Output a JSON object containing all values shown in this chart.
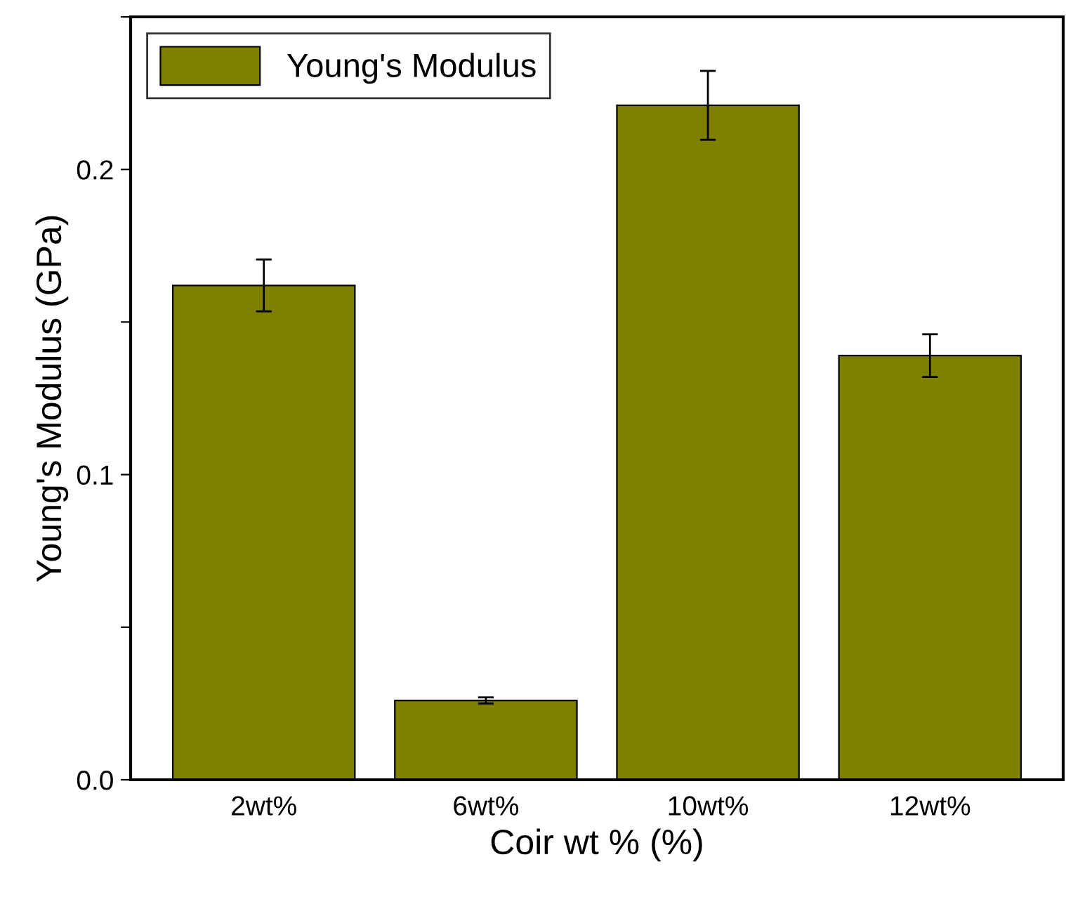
{
  "chart_data": {
    "type": "bar",
    "xlabel": "Coir wt % (%)",
    "ylabel": "Young's Modulus (GPa)",
    "categories": [
      "2wt%",
      "6wt%",
      "10wt%",
      "12wt%"
    ],
    "series": [
      {
        "name": "Young's Modulus",
        "color": "#808000",
        "values": [
          0.162,
          0.026,
          0.221,
          0.139
        ],
        "errors": [
          0.0085,
          0.001,
          0.0113,
          0.007
        ]
      }
    ],
    "ylim": [
      0,
      0.25
    ],
    "yticks": [
      {
        "value": 0,
        "label": "0.0"
      },
      {
        "value": 0.05,
        "label": null
      },
      0.1,
      {
        "value": 0.15,
        "label": null
      },
      0.2,
      {
        "value": 0.25,
        "label": null
      }
    ],
    "legend": "top left",
    "grid": false
  }
}
